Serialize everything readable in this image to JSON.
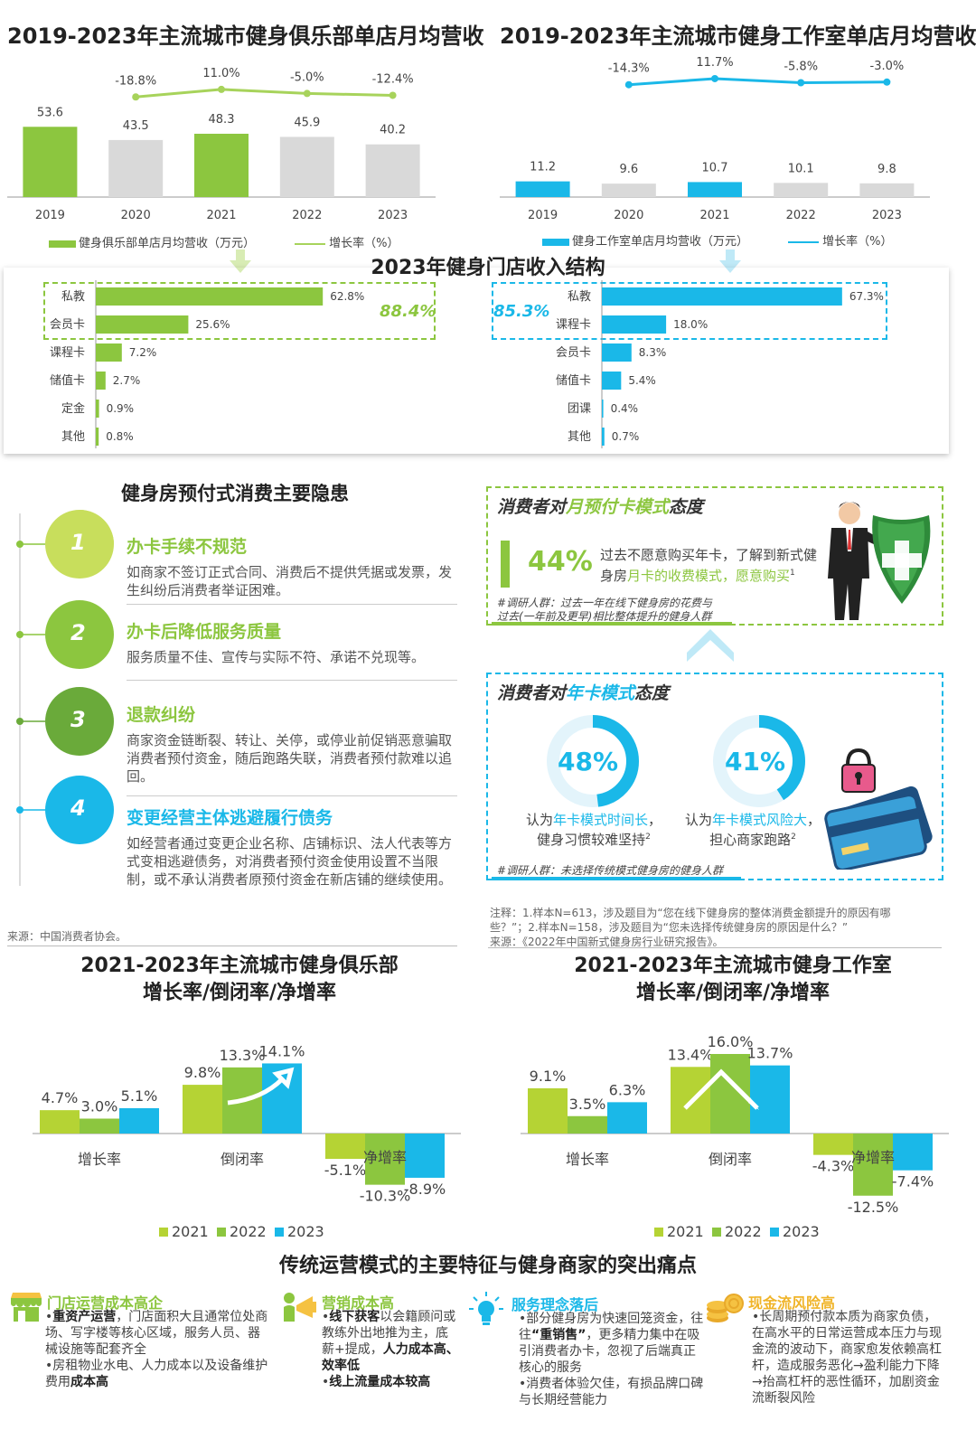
{
  "colors": {
    "green": "#8cc63f",
    "green_mid": "#a7d35b",
    "grey": "#d9d9d9",
    "blue": "#1ab8e8"
  },
  "club_revenue": {
    "title": "2019-2023年主流城市健身俱乐部单店月均营收",
    "legend_bar": "健身俱乐部单店月均营收（万元）",
    "legend_line": "增长率（%）"
  },
  "studio_revenue": {
    "title": "2019-2023年主流城市健身工作室单店月均营收",
    "legend_bar": "健身工作室单店月均营收（万元）",
    "legend_line": "增长率（%）"
  },
  "income": {
    "title": "2023年健身门店收入结构",
    "club_highlight": "88.4%",
    "studio_highlight": "85.3%"
  },
  "risks": {
    "title": "健身房预付式消费主要隐患",
    "items": [
      {
        "num": "1",
        "title": "办卡手续不规范",
        "desc": "如商家不签订正式合同、消费后不提供凭据或发票，发生纠纷后消费者举证困难。"
      },
      {
        "num": "2",
        "title": "办卡后降低服务质量",
        "desc": "服务质量不佳、宣传与实际不符、承诺不兑现等。"
      },
      {
        "num": "3",
        "title": "退款纠纷",
        "desc": "商家资金链断裂、转让、关停，或停业前促销恶意骗取消费者预付资金，随后跑路失联，消费者预付款难以追回。"
      },
      {
        "num": "4",
        "title": "变更经营主体逃避履行债务",
        "desc": "如经营者通过变更企业名称、店铺标识、法人代表等方式变相逃避债务，对消费者预付资金使用设置不当限制，或不承认消费者原预付资金在新店铺的继续使用。"
      }
    ],
    "source": "来源：中国消费者协会。"
  },
  "monthly_box": {
    "title_pre": "消费者对",
    "title_hl": "月预付卡模式",
    "title_post": "态度",
    "pct": "44%",
    "text_pre": "过去不愿意购买年卡，了解到新式健身房",
    "text_hl": "月卡的收费模式，愿意购买",
    "text_sup": "1",
    "note1": "#调研人群：过去一年在线下健身房的花费与",
    "note2": "过去(一年前及更早)相比整体提升的健身人群"
  },
  "annual_box": {
    "title_pre": "消费者对",
    "title_hl": "年卡模式",
    "title_post": "态度",
    "d1_pct": "48%",
    "d1_fill": 0.48,
    "d1_line1_pre": "认为",
    "d1_line1_hl": "年卡模式时间长",
    "d1_line1_post": "，",
    "d1_line2": "健身习惯较难坚持",
    "d1_sup": "2",
    "d2_pct": "41%",
    "d2_fill": 0.41,
    "d2_line1_pre": "认为",
    "d2_line1_hl": "年卡模式风险大",
    "d2_line1_post": "，",
    "d2_line2": "担心商家跑路",
    "d2_sup": "2",
    "note": "#调研人群：未选择传统模式健身房的健身人群"
  },
  "notes": {
    "line1": "注释：1.样本N=613，涉及题目为“您在线下健身房的整体消费金额提升的原因有哪",
    "line2": "些？”；2.样本N=158，涉及题目为“您未选择传统健身房的原因是什么？”",
    "line3": "来源：《2022年中国新式健身房行业研究报告》。"
  },
  "club_rates": {
    "title1": "2021-2023年主流城市健身俱乐部",
    "title2": "增长率/倒闭率/净增率"
  },
  "studio_rates": {
    "title1": "2021-2023年主流城市健身工作室",
    "title2": "增长率/倒闭率/净增率"
  },
  "features": {
    "title": "传统运营模式的主要特征与健身商家的突出痛点",
    "items": [
      {
        "title": "门店运营成本高企",
        "icon": "storefront-icon",
        "l1b": "重资产运营",
        "l1": "，门店面积大且通常位处商场、写字楼等核心区域，服务人员、器械设施等配套齐全",
        "l2": "房租物业水电、人力成本以及设备维护费用",
        "l2b": "成本高"
      },
      {
        "title": "营销成本高",
        "icon": "megaphone-icon",
        "l1b": "线下获客",
        "l1": "以会籍顾问或教练外出地推为主，底薪+提成，",
        "l1c": "人力成本高、效率低",
        "l2b": "线上流量成本较高"
      },
      {
        "title": "服务理念落后",
        "icon": "lightbulb-icon",
        "l1": "部分健身房为快速回笼资金，往往",
        "l1b": "“重销售”",
        "l1c": "，更多精力集中在吸引消费者办卡，忽视了后端真正核心的服务",
        "l2": "消费者体验欠佳，有损品牌口碑与长期经营能力"
      },
      {
        "title": "现金流风险高",
        "icon": "coins-icon",
        "l1": "长周期预付款本质为商家负债，在高水平的日常运营成本压力与现金流的波动下，商家愈发依赖高杠杆，造成服务恶化→盈利能力下降→抬高杠杆的恶性循环，加剧资金流断裂风险"
      }
    ]
  },
  "chart_data": [
    {
      "type": "bar",
      "id": "club_revenue",
      "categories": [
        "2019",
        "2020",
        "2021",
        "2022",
        "2023"
      ],
      "series": [
        {
          "name": "健身俱乐部单店月均营收（万元）",
          "values": [
            53.6,
            43.5,
            48.3,
            45.9,
            40.2
          ]
        }
      ],
      "line": {
        "name": "增长率（%）",
        "x": [
          "2020",
          "2021",
          "2022",
          "2023"
        ],
        "values": [
          -18.8,
          11.0,
          -5.0,
          -12.4
        ],
        "labels": [
          "-18.8%",
          "11.0%",
          "-5.0%",
          "-12.4%"
        ]
      }
    },
    {
      "type": "bar",
      "id": "studio_revenue",
      "categories": [
        "2019",
        "2020",
        "2021",
        "2022",
        "2023"
      ],
      "series": [
        {
          "name": "健身工作室单店月均营收（万元）",
          "values": [
            11.2,
            9.6,
            10.7,
            10.1,
            9.8
          ]
        }
      ],
      "line": {
        "name": "增长率（%）",
        "x": [
          "2020",
          "2021",
          "2022",
          "2023"
        ],
        "values": [
          -14.3,
          11.7,
          -5.8,
          -3.0
        ],
        "labels": [
          "-14.3%",
          "11.7%",
          "-5.8%",
          "-3.0%"
        ]
      }
    },
    {
      "type": "bar",
      "id": "club_income",
      "orientation": "horizontal",
      "categories": [
        "私教",
        "会员卡",
        "课程卡",
        "储值卡",
        "定金",
        "其他"
      ],
      "values": [
        62.8,
        25.6,
        7.2,
        2.7,
        0.9,
        0.8
      ]
    },
    {
      "type": "bar",
      "id": "studio_income",
      "orientation": "horizontal",
      "categories": [
        "私教",
        "课程卡",
        "会员卡",
        "储值卡",
        "团课",
        "其他"
      ],
      "values": [
        67.3,
        18.0,
        8.3,
        5.4,
        0.4,
        0.7
      ]
    },
    {
      "type": "bar",
      "id": "club_rates",
      "categories": [
        "增长率",
        "倒闭率",
        "净增率"
      ],
      "series": [
        {
          "name": "2021",
          "values": [
            4.7,
            9.8,
            -5.1
          ]
        },
        {
          "name": "2022",
          "values": [
            3.0,
            13.3,
            -10.3
          ]
        },
        {
          "name": "2023",
          "values": [
            5.1,
            14.1,
            -8.9
          ]
        }
      ]
    },
    {
      "type": "bar",
      "id": "studio_rates",
      "categories": [
        "增长率",
        "倒闭率",
        "净增率"
      ],
      "series": [
        {
          "name": "2021",
          "values": [
            9.1,
            13.4,
            -4.3
          ]
        },
        {
          "name": "2022",
          "values": [
            3.5,
            16.0,
            -12.5
          ]
        },
        {
          "name": "2023",
          "values": [
            6.3,
            13.7,
            -7.4
          ]
        }
      ]
    }
  ]
}
